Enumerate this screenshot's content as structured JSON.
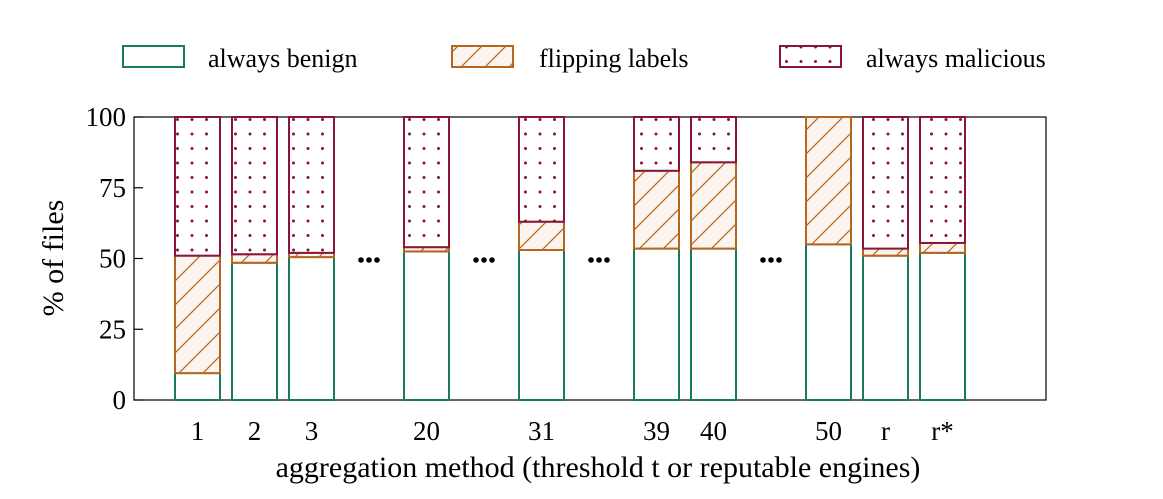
{
  "chart_data": {
    "type": "bar",
    "stacked": true,
    "categories": [
      "1",
      "2",
      "3",
      "20",
      "31",
      "39",
      "40",
      "50",
      "r",
      "r*"
    ],
    "gaps_after": [
      "3",
      "20",
      "31",
      "40"
    ],
    "gap_marker": "...",
    "series": [
      {
        "name": "always benign",
        "values": [
          9.5,
          48.5,
          50.5,
          52.5,
          53,
          53.5,
          53.5,
          55,
          51,
          52
        ],
        "color": "#1a7a5c",
        "fill": "#ffffff",
        "pattern": "none"
      },
      {
        "name": "flipping labels",
        "values": [
          41.5,
          3,
          1.5,
          1.5,
          10,
          27.5,
          30.5,
          45,
          2.5,
          3.5
        ],
        "color": "#b5651d",
        "fill": "#fbf4ef",
        "pattern": "hatch"
      },
      {
        "name": "always malicious",
        "values": [
          49,
          48.5,
          48,
          46,
          37,
          19,
          16,
          0,
          46.5,
          44.5
        ],
        "color": "#8b1538",
        "fill": "#ffffff",
        "pattern": "dots"
      }
    ],
    "xlabel": "aggregation method (threshold t or reputable engines)",
    "ylabel": "% of files",
    "ylim": [
      0,
      100
    ],
    "yticks": [
      0,
      25,
      50,
      75,
      100
    ],
    "legend_position": "top"
  }
}
